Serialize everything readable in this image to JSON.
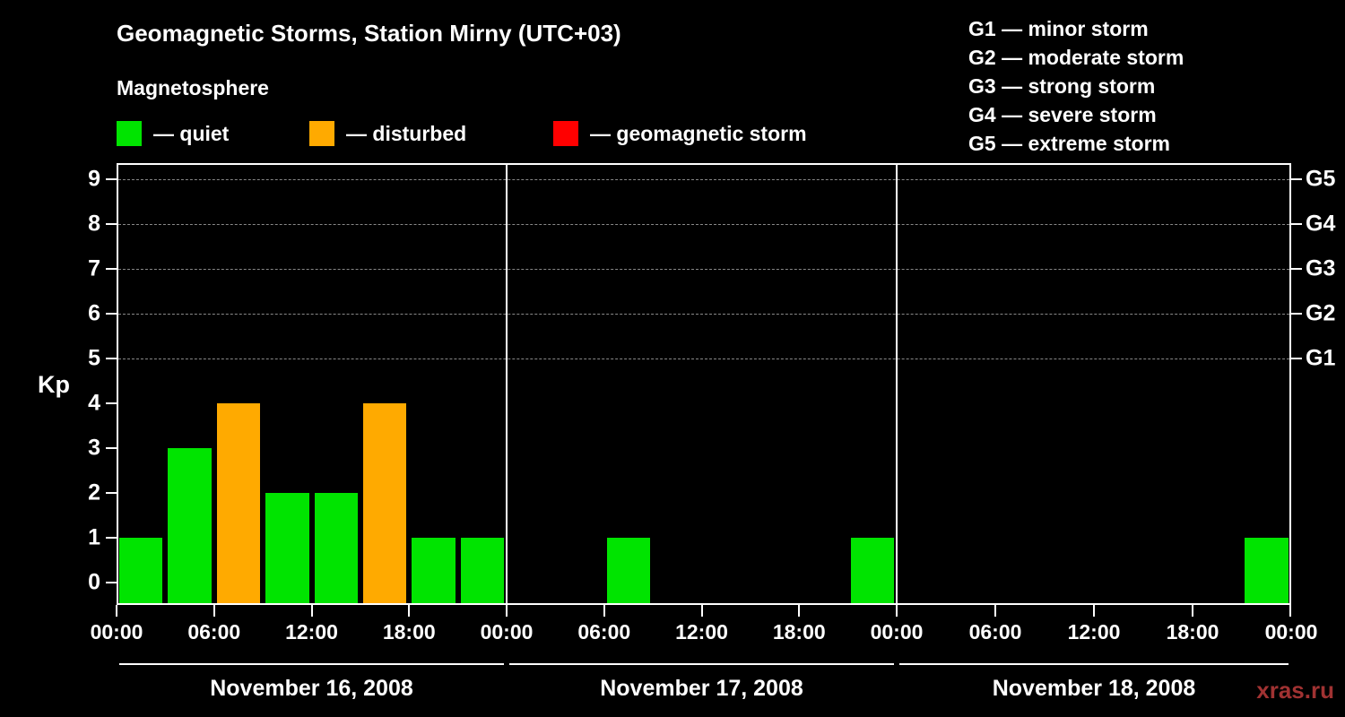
{
  "title": "Geomagnetic Storms, Station Mirny (UTC+03)",
  "subtitle": "Magnetosphere",
  "legend": {
    "quiet": {
      "label": "— quiet",
      "color": "#00e400"
    },
    "disturbed": {
      "label": "— disturbed",
      "color": "#ffaa00"
    },
    "storm": {
      "label": "— geomagnetic storm",
      "color": "#ff0000"
    }
  },
  "g_legend": [
    "G1 — minor storm",
    "G2 — moderate storm",
    "G3 — strong storm",
    "G4 — severe storm",
    "G5 — extreme storm"
  ],
  "watermark": {
    "text": "xras.ru",
    "color": "#a03232"
  },
  "chart_data": {
    "type": "bar",
    "title": "Geomagnetic Storms, Station Mirny (UTC+03)",
    "ylabel": "Kp",
    "ylim": [
      0,
      9
    ],
    "y_ticks": [
      0,
      1,
      2,
      3,
      4,
      5,
      6,
      7,
      8,
      9
    ],
    "gridlines_kp": [
      5,
      6,
      7,
      8,
      9
    ],
    "g_axis": [
      {
        "label": "G1",
        "kp": 5
      },
      {
        "label": "G2",
        "kp": 6
      },
      {
        "label": "G3",
        "kp": 7
      },
      {
        "label": "G4",
        "kp": 8
      },
      {
        "label": "G5",
        "kp": 9
      }
    ],
    "time_labels": [
      "00:00",
      "06:00",
      "12:00",
      "18:00"
    ],
    "final_time_label": "00:00",
    "interval_hours": 3,
    "days": [
      {
        "date": "November 16, 2008",
        "values": [
          1,
          3,
          4,
          2,
          2,
          4,
          1,
          1
        ],
        "states": [
          "quiet",
          "quiet",
          "disturbed",
          "quiet",
          "quiet",
          "disturbed",
          "quiet",
          "quiet"
        ]
      },
      {
        "date": "November 17, 2008",
        "values": [
          0,
          0,
          1,
          0,
          0,
          0,
          0,
          1
        ],
        "states": [
          "quiet",
          "quiet",
          "quiet",
          "quiet",
          "quiet",
          "quiet",
          "quiet",
          "quiet"
        ]
      },
      {
        "date": "November 18, 2008",
        "values": [
          0,
          0,
          0,
          0,
          0,
          0,
          0,
          1
        ],
        "states": [
          "quiet",
          "quiet",
          "quiet",
          "quiet",
          "quiet",
          "quiet",
          "quiet",
          "quiet"
        ]
      }
    ]
  }
}
